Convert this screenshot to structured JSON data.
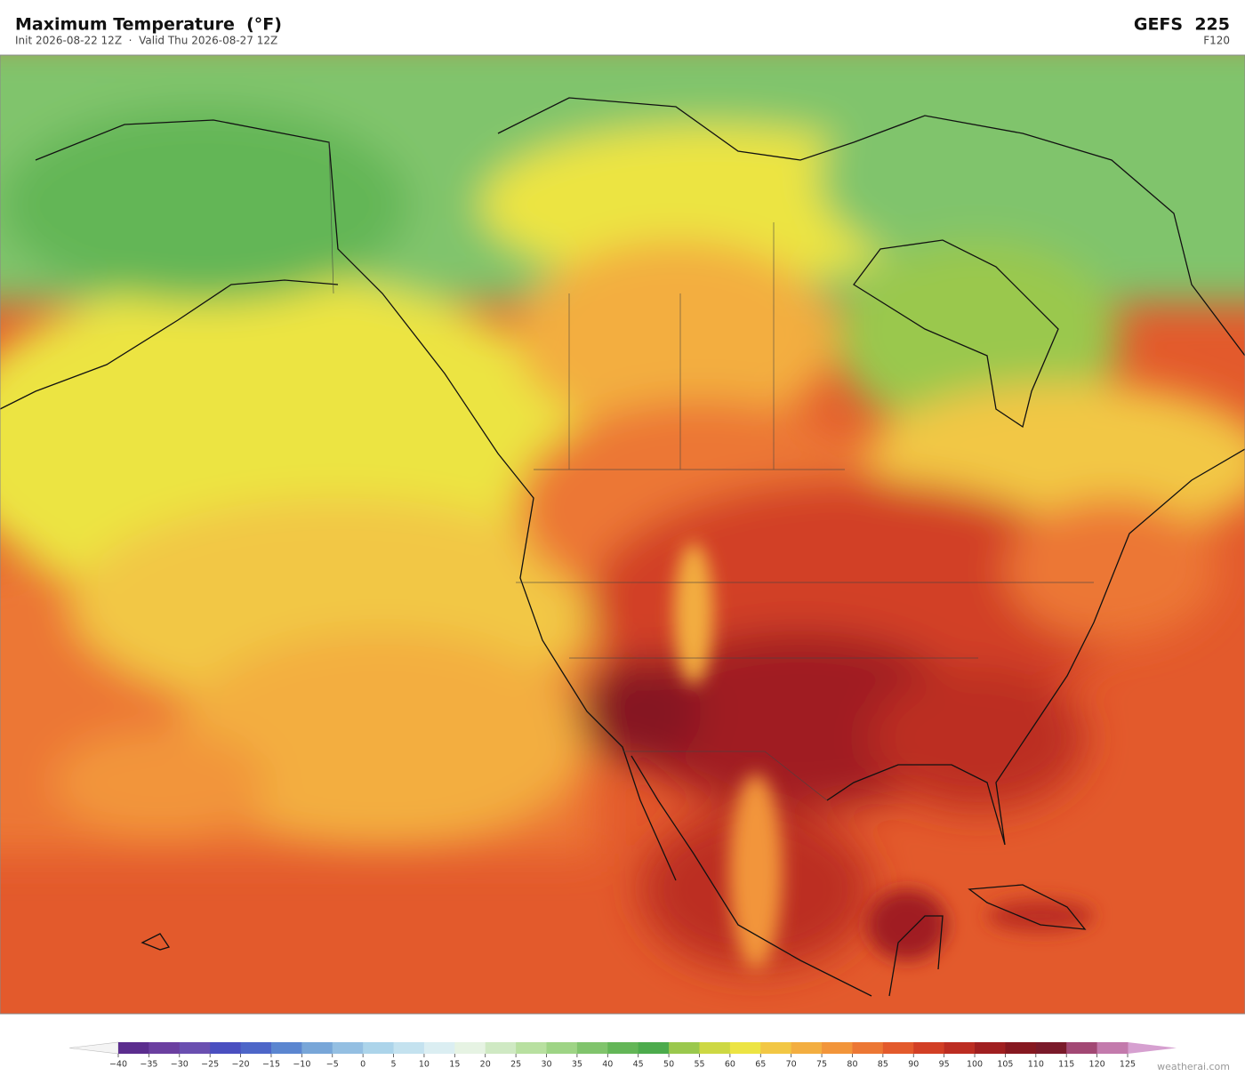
{
  "header": {
    "title": "Maximum Temperature  (°F)",
    "subtitle": "Init 2026-08-22 12Z  ·  Valid Thu 2026-08-27 12Z",
    "model": "GEFS  225",
    "forecast_hour": "F120"
  },
  "colorbar": {
    "ticks": [
      {
        "value": -40,
        "label": "−40"
      },
      {
        "value": -35,
        "label": "−35"
      },
      {
        "value": -30,
        "label": "−30"
      },
      {
        "value": -25,
        "label": "−25"
      },
      {
        "value": -20,
        "label": "−20"
      },
      {
        "value": -15,
        "label": "−15"
      },
      {
        "value": -10,
        "label": "−10"
      },
      {
        "value": -5,
        "label": "−5"
      },
      0,
      5,
      10,
      15,
      20,
      25,
      30,
      35,
      40,
      45,
      50,
      55,
      60,
      65,
      70,
      75,
      80,
      85,
      90,
      95,
      100,
      105,
      110,
      115,
      120,
      125
    ],
    "colors": [
      "#5b2d8e",
      "#6b3fa0",
      "#6a4fb0",
      "#4a4fc0",
      "#4d66c8",
      "#5b86d0",
      "#78a6d8",
      "#94bfe2",
      "#acd4ea",
      "#c4e2ef",
      "#dbeef2",
      "#e6f3e3",
      "#cfe9c3",
      "#b8e0a0",
      "#9ed485",
      "#80c46c",
      "#63b657",
      "#4cab4c",
      "#9ac84d",
      "#cdd843",
      "#ece443",
      "#f2c744",
      "#f3ae40",
      "#f2953a",
      "#ec7734",
      "#e35a2c",
      "#d23f25",
      "#bc2d22",
      "#a01f20",
      "#861820",
      "#7a1a2a",
      "#a24874",
      "#c37aac"
    ],
    "under_color": "#f4f4f4",
    "over_color": "#d6a0d0"
  },
  "footer": {
    "credit": "weatherai.com"
  }
}
